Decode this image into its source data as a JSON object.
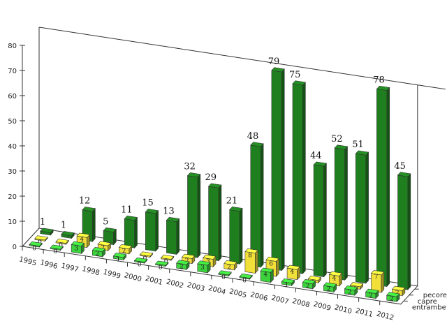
{
  "chart_data": {
    "type": "bar",
    "three_d": true,
    "categories": [
      "1995",
      "1996",
      "1997",
      "1998",
      "1999",
      "2000",
      "2001",
      "2002",
      "2003",
      "2004",
      "2005",
      "2006",
      "2007",
      "2008",
      "2009",
      "2010",
      "2011",
      "2012"
    ],
    "series": [
      {
        "name": "pecore",
        "color": "#1f7f1f",
        "values": [
          1,
          1,
          12,
          5,
          11,
          15,
          13,
          32,
          29,
          21,
          48,
          79,
          75,
          44,
          52,
          51,
          78,
          45
        ]
      },
      {
        "name": "capre",
        "color": "#f2e03a",
        "values": [
          0,
          0,
          4,
          2,
          2,
          0,
          0,
          2,
          3,
          2,
          8,
          6,
          4,
          1,
          4,
          1,
          7,
          2
        ]
      },
      {
        "name": "entrambe",
        "color": "#3cd23c",
        "values": [
          0,
          0,
          3,
          2,
          1,
          0,
          0,
          2,
          3,
          0,
          0,
          4,
          1,
          2,
          2,
          2,
          2,
          2
        ]
      }
    ],
    "ylim": [
      0,
      80
    ],
    "yticks": [
      "0",
      "10",
      "20",
      "30",
      "40",
      "50",
      "60",
      "70",
      "80"
    ],
    "grid": false
  }
}
